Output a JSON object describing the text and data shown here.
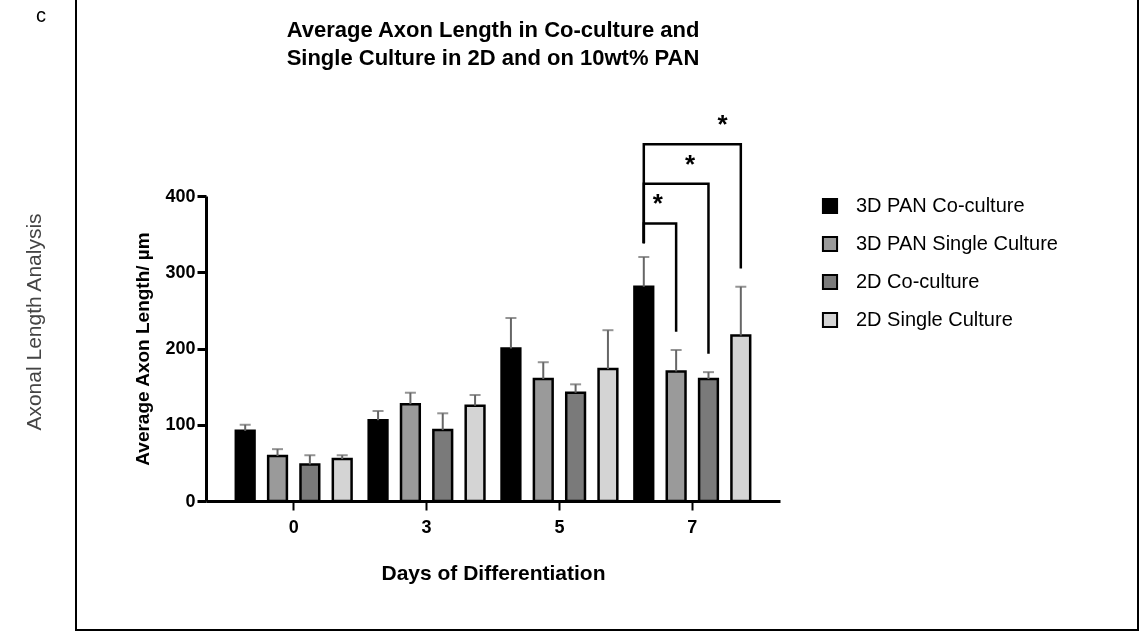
{
  "chart_data": {
    "type": "bar",
    "title": "Average Axon Length in Co-culture and Single Culture in 2D and on 10wt% PAN",
    "xlabel": "Days of  Differentiation",
    "ylabel": "Average Axon Length/ µm",
    "categories": [
      "0",
      "3",
      "5",
      "7"
    ],
    "series": [
      {
        "name": "3D PAN Co-culture",
        "color": "#000000",
        "values": [
          92,
          106,
          200,
          281
        ],
        "errors": [
          [
            92,
            100
          ],
          [
            106,
            118
          ],
          [
            200,
            240
          ],
          [
            281,
            320
          ]
        ]
      },
      {
        "name": "3D PAN Single Culture",
        "color": "#9a9a9a",
        "values": [
          59,
          127,
          160,
          170
        ],
        "errors": [
          [
            59,
            68
          ],
          [
            127,
            142
          ],
          [
            160,
            182
          ],
          [
            170,
            198
          ]
        ]
      },
      {
        "name": "2D Co-culture",
        "color": "#7a7a7a",
        "values": [
          48,
          93,
          142,
          160
        ],
        "errors": [
          [
            48,
            60
          ],
          [
            93,
            115
          ],
          [
            142,
            153
          ],
          [
            160,
            169
          ]
        ]
      },
      {
        "name": "2D Single Culture",
        "color": "#d4d4d4",
        "values": [
          55,
          125,
          173,
          217
        ],
        "errors": [
          [
            55,
            60
          ],
          [
            125,
            139
          ],
          [
            173,
            224
          ],
          [
            217,
            281
          ]
        ]
      }
    ],
    "ylim": [
      0,
      400
    ],
    "yticks": [
      0,
      100,
      200,
      300,
      400
    ],
    "grid": false,
    "legend": "right",
    "annotations": [
      "c",
      "Axonal Length Analysis",
      "*",
      "*",
      "*"
    ]
  }
}
